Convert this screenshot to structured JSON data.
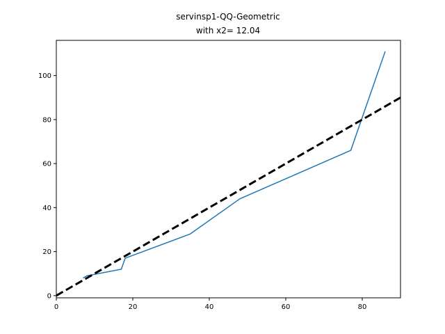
{
  "chart_data": {
    "type": "line",
    "title": "servinsp1-QQ-Geometric",
    "subtitle": "with x2= 12.04",
    "xlabel": "",
    "ylabel": "",
    "xlim": [
      0,
      90
    ],
    "ylim": [
      -1,
      116
    ],
    "grid": false,
    "xticks": [
      0,
      20,
      40,
      60,
      80
    ],
    "yticks": [
      0,
      20,
      40,
      60,
      80,
      100
    ],
    "series": [
      {
        "style": "solid",
        "color": "#1f77b4",
        "x": [
          7,
          8,
          17,
          18,
          35,
          48,
          77,
          86
        ],
        "y": [
          8,
          9,
          12,
          17,
          28,
          44,
          66,
          111
        ]
      },
      {
        "style": "dashed",
        "color": "#000000",
        "x": [
          0,
          90
        ],
        "y": [
          0,
          90
        ]
      }
    ]
  }
}
